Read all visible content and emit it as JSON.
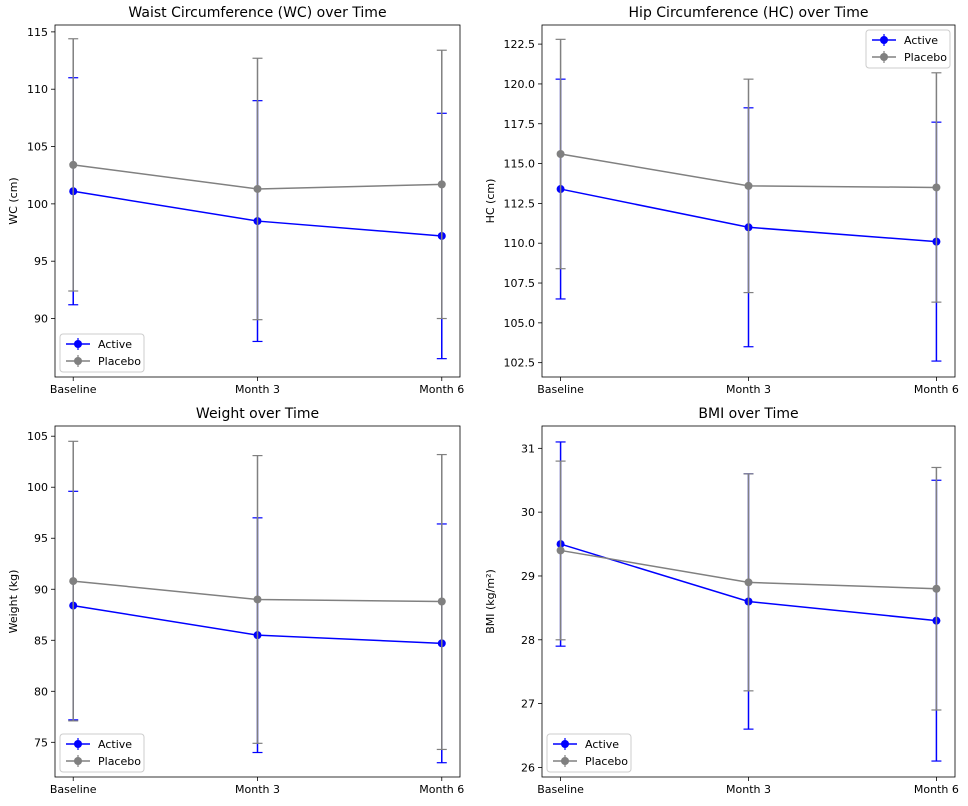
{
  "chart_data": [
    {
      "type": "line",
      "title": "Waist Circumference (WC) over Time",
      "xlabel": "",
      "ylabel": "WC (cm)",
      "categories": [
        "Baseline",
        "Month 3",
        "Month 6"
      ],
      "ylim": [
        84.9,
        115.6
      ],
      "yticks": [
        90,
        95,
        100,
        105,
        110,
        115
      ],
      "ytick_labels": [
        "90",
        "95",
        "100",
        "105",
        "110",
        "115"
      ],
      "legend_position": "lower-left",
      "series": [
        {
          "name": "Active",
          "color": "#0000ff",
          "values": [
            101.1,
            98.5,
            97.2
          ],
          "lower": [
            91.2,
            88.0,
            86.5
          ],
          "upper": [
            111.0,
            109.0,
            107.9
          ]
        },
        {
          "name": "Placebo",
          "color": "#808080",
          "values": [
            103.4,
            101.3,
            101.7
          ],
          "lower": [
            92.4,
            89.9,
            90.0
          ],
          "upper": [
            114.4,
            112.7,
            113.4
          ]
        }
      ]
    },
    {
      "type": "line",
      "title": "Hip Circumference (HC) over Time",
      "xlabel": "",
      "ylabel": "HC (cm)",
      "categories": [
        "Baseline",
        "Month 3",
        "Month 6"
      ],
      "ylim": [
        101.6,
        123.7
      ],
      "yticks": [
        102.5,
        105.0,
        107.5,
        110.0,
        112.5,
        115.0,
        117.5,
        120.0,
        122.5
      ],
      "ytick_labels": [
        "102.5",
        "105.0",
        "107.5",
        "110.0",
        "112.5",
        "115.0",
        "117.5",
        "120.0",
        "122.5"
      ],
      "legend_position": "upper-right",
      "series": [
        {
          "name": "Active",
          "color": "#0000ff",
          "values": [
            113.4,
            111.0,
            110.1
          ],
          "lower": [
            106.5,
            103.5,
            102.6
          ],
          "upper": [
            120.3,
            118.5,
            117.6
          ]
        },
        {
          "name": "Placebo",
          "color": "#808080",
          "values": [
            115.6,
            113.6,
            113.5
          ],
          "lower": [
            108.4,
            106.9,
            106.3
          ],
          "upper": [
            122.8,
            120.3,
            120.7
          ]
        }
      ]
    },
    {
      "type": "line",
      "title": "Weight over Time",
      "xlabel": "",
      "ylabel": "Weight (kg)",
      "categories": [
        "Baseline",
        "Month 3",
        "Month 6"
      ],
      "ylim": [
        71.6,
        106.0
      ],
      "yticks": [
        75,
        80,
        85,
        90,
        95,
        100,
        105
      ],
      "ytick_labels": [
        "75",
        "80",
        "85",
        "90",
        "95",
        "100",
        "105"
      ],
      "legend_position": "lower-left",
      "series": [
        {
          "name": "Active",
          "color": "#0000ff",
          "values": [
            88.4,
            85.5,
            84.7
          ],
          "lower": [
            77.2,
            74.0,
            73.0
          ],
          "upper": [
            99.6,
            97.0,
            96.4
          ]
        },
        {
          "name": "Placebo",
          "color": "#808080",
          "values": [
            90.8,
            89.0,
            88.8
          ],
          "lower": [
            77.1,
            74.9,
            74.3
          ],
          "upper": [
            104.5,
            103.1,
            103.2
          ]
        }
      ]
    },
    {
      "type": "line",
      "title": "BMI over Time",
      "xlabel": "",
      "ylabel": "BMI (kg/m²)",
      "categories": [
        "Baseline",
        "Month 3",
        "Month 6"
      ],
      "ylim": [
        25.85,
        31.35
      ],
      "yticks": [
        26,
        27,
        28,
        29,
        30,
        31
      ],
      "ytick_labels": [
        "26",
        "27",
        "28",
        "29",
        "30",
        "31"
      ],
      "legend_position": "lower-left",
      "series": [
        {
          "name": "Active",
          "color": "#0000ff",
          "values": [
            29.5,
            28.6,
            28.3
          ],
          "lower": [
            27.9,
            26.6,
            26.1
          ],
          "upper": [
            31.1,
            30.6,
            30.5
          ]
        },
        {
          "name": "Placebo",
          "color": "#808080",
          "values": [
            29.4,
            28.9,
            28.8
          ],
          "lower": [
            28.0,
            27.2,
            26.9
          ],
          "upper": [
            30.8,
            30.6,
            30.7
          ]
        }
      ]
    }
  ]
}
